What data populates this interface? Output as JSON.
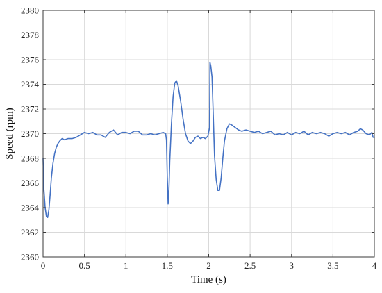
{
  "chart_data": {
    "type": "line",
    "xlabel": "Time (s)",
    "ylabel": "Speed (rpm)",
    "xlim": [
      0,
      4
    ],
    "ylim": [
      2360,
      2380
    ],
    "xticks": [
      0,
      0.5,
      1,
      1.5,
      2,
      2.5,
      3,
      3.5,
      4
    ],
    "xtick_labels": [
      "0",
      "0.5",
      "1",
      "1.5",
      "2",
      "2.5",
      "3",
      "3.5",
      "4"
    ],
    "yticks": [
      2360,
      2362,
      2364,
      2366,
      2368,
      2370,
      2372,
      2374,
      2376,
      2378,
      2380
    ],
    "ytick_labels": [
      "2360",
      "2362",
      "2364",
      "2366",
      "2368",
      "2370",
      "2372",
      "2374",
      "2376",
      "2378",
      "2380"
    ],
    "grid": true,
    "series": [
      {
        "color": "#4472c4",
        "points": [
          [
            0.0,
            2368.0
          ],
          [
            0.01,
            2365.5
          ],
          [
            0.025,
            2364.0
          ],
          [
            0.04,
            2363.3
          ],
          [
            0.055,
            2363.2
          ],
          [
            0.07,
            2363.8
          ],
          [
            0.085,
            2365.0
          ],
          [
            0.1,
            2366.4
          ],
          [
            0.12,
            2367.6
          ],
          [
            0.14,
            2368.4
          ],
          [
            0.16,
            2368.9
          ],
          [
            0.18,
            2369.2
          ],
          [
            0.2,
            2369.4
          ],
          [
            0.23,
            2369.6
          ],
          [
            0.26,
            2369.5
          ],
          [
            0.3,
            2369.6
          ],
          [
            0.35,
            2369.6
          ],
          [
            0.4,
            2369.7
          ],
          [
            0.45,
            2369.9
          ],
          [
            0.5,
            2370.1
          ],
          [
            0.55,
            2370.0
          ],
          [
            0.6,
            2370.1
          ],
          [
            0.65,
            2369.9
          ],
          [
            0.7,
            2369.9
          ],
          [
            0.75,
            2369.7
          ],
          [
            0.8,
            2370.1
          ],
          [
            0.85,
            2370.3
          ],
          [
            0.9,
            2369.9
          ],
          [
            0.95,
            2370.1
          ],
          [
            1.0,
            2370.1
          ],
          [
            1.05,
            2370.0
          ],
          [
            1.1,
            2370.2
          ],
          [
            1.15,
            2370.2
          ],
          [
            1.2,
            2369.9
          ],
          [
            1.25,
            2369.9
          ],
          [
            1.3,
            2370.0
          ],
          [
            1.35,
            2369.9
          ],
          [
            1.4,
            2370.0
          ],
          [
            1.45,
            2370.1
          ],
          [
            1.48,
            2370.0
          ],
          [
            1.49,
            2369.5
          ],
          [
            1.5,
            2366.5
          ],
          [
            1.51,
            2364.3
          ],
          [
            1.52,
            2365.5
          ],
          [
            1.53,
            2367.8
          ],
          [
            1.55,
            2370.8
          ],
          [
            1.57,
            2373.0
          ],
          [
            1.59,
            2374.1
          ],
          [
            1.61,
            2374.3
          ],
          [
            1.63,
            2373.9
          ],
          [
            1.66,
            2372.7
          ],
          [
            1.69,
            2371.2
          ],
          [
            1.72,
            2370.0
          ],
          [
            1.75,
            2369.4
          ],
          [
            1.78,
            2369.2
          ],
          [
            1.81,
            2369.4
          ],
          [
            1.84,
            2369.7
          ],
          [
            1.87,
            2369.8
          ],
          [
            1.9,
            2369.6
          ],
          [
            1.93,
            2369.7
          ],
          [
            1.96,
            2369.6
          ],
          [
            1.99,
            2369.8
          ],
          [
            2.01,
            2370.5
          ],
          [
            2.015,
            2375.8
          ],
          [
            2.025,
            2375.5
          ],
          [
            2.04,
            2374.6
          ],
          [
            2.055,
            2371.5
          ],
          [
            2.07,
            2368.2
          ],
          [
            2.09,
            2366.3
          ],
          [
            2.11,
            2365.4
          ],
          [
            2.13,
            2365.4
          ],
          [
            2.15,
            2366.4
          ],
          [
            2.17,
            2368.0
          ],
          [
            2.19,
            2369.4
          ],
          [
            2.22,
            2370.4
          ],
          [
            2.25,
            2370.8
          ],
          [
            2.28,
            2370.7
          ],
          [
            2.32,
            2370.5
          ],
          [
            2.36,
            2370.3
          ],
          [
            2.4,
            2370.2
          ],
          [
            2.45,
            2370.3
          ],
          [
            2.5,
            2370.2
          ],
          [
            2.55,
            2370.1
          ],
          [
            2.6,
            2370.2
          ],
          [
            2.65,
            2370.0
          ],
          [
            2.7,
            2370.1
          ],
          [
            2.75,
            2370.2
          ],
          [
            2.8,
            2369.9
          ],
          [
            2.85,
            2370.0
          ],
          [
            2.9,
            2369.9
          ],
          [
            2.95,
            2370.1
          ],
          [
            3.0,
            2369.9
          ],
          [
            3.05,
            2370.1
          ],
          [
            3.1,
            2370.0
          ],
          [
            3.15,
            2370.2
          ],
          [
            3.2,
            2369.9
          ],
          [
            3.25,
            2370.1
          ],
          [
            3.3,
            2370.0
          ],
          [
            3.35,
            2370.1
          ],
          [
            3.4,
            2370.0
          ],
          [
            3.45,
            2369.8
          ],
          [
            3.5,
            2370.0
          ],
          [
            3.55,
            2370.1
          ],
          [
            3.6,
            2370.0
          ],
          [
            3.65,
            2370.1
          ],
          [
            3.7,
            2369.9
          ],
          [
            3.75,
            2370.1
          ],
          [
            3.8,
            2370.2
          ],
          [
            3.83,
            2370.4
          ],
          [
            3.86,
            2370.3
          ],
          [
            3.9,
            2370.0
          ],
          [
            3.94,
            2369.9
          ],
          [
            3.97,
            2370.1
          ],
          [
            3.985,
            2369.7
          ],
          [
            4.0,
            2369.7
          ]
        ]
      }
    ]
  }
}
